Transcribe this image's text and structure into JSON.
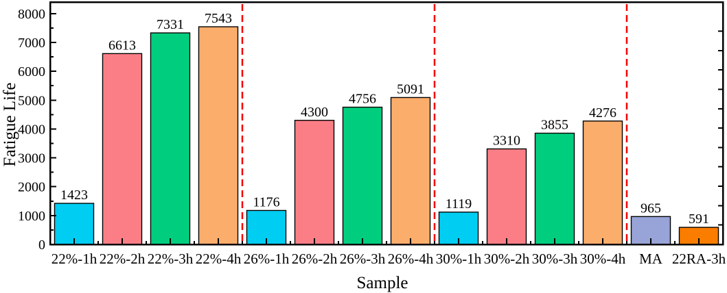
{
  "chart_data": {
    "type": "bar",
    "title": "",
    "xlabel": "Sample",
    "ylabel": "Fatigue Life",
    "categories": [
      "22%-1h",
      "22%-2h",
      "22%-3h",
      "22%-4h",
      "26%-1h",
      "26%-2h",
      "26%-3h",
      "26%-4h",
      "30%-1h",
      "30%-2h",
      "30%-3h",
      "30%-4h",
      "MA",
      "22RA-3h"
    ],
    "values": [
      1423,
      6613,
      7331,
      7543,
      1176,
      4300,
      4756,
      5091,
      1119,
      3310,
      3855,
      4276,
      965,
      591
    ],
    "bar_colors": [
      "#00CDF2",
      "#FB7E86",
      "#00CE7E",
      "#FBAD6C",
      "#00CDF2",
      "#FB7E86",
      "#00CE7E",
      "#FBAD6C",
      "#00CDF2",
      "#FB7E86",
      "#00CE7E",
      "#FBAD6C",
      "#98A3D8",
      "#FA7D00"
    ],
    "bar_edge_color": "#000000",
    "y_axis": {
      "min": 0,
      "max": 8400,
      "major_step": 1000,
      "minor_step": 500,
      "major_tick_labels": [
        "0",
        "1000",
        "2000",
        "3000",
        "4000",
        "5000",
        "6000",
        "7000",
        "8000"
      ]
    },
    "separators": {
      "after_category_indices": [
        4,
        8,
        12
      ],
      "color": "#F50000",
      "style": "dashed"
    },
    "frame": true,
    "grid": false,
    "legend": "none",
    "axis_color": "#000000",
    "text_color": "#000000",
    "background": "#FFFFFF"
  }
}
